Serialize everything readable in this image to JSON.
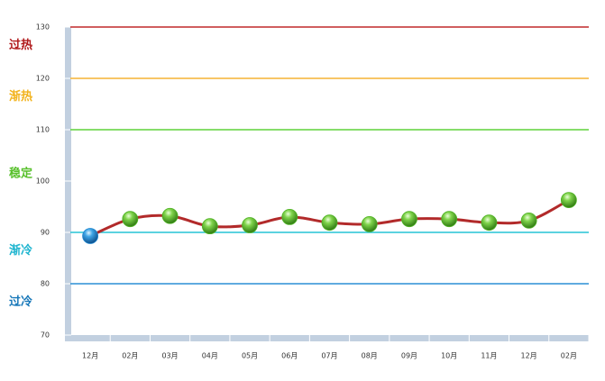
{
  "chart_data": {
    "type": "line",
    "categories": [
      "12月",
      "02月",
      "03月",
      "04月",
      "05月",
      "06月",
      "07月",
      "08月",
      "09月",
      "10月",
      "11月",
      "12月",
      "02月"
    ],
    "series": [
      {
        "color": "#b22a2a",
        "values": [
          89.3,
          92.6,
          93.2,
          91.2,
          91.4,
          93.0,
          91.9,
          91.6,
          92.6,
          92.6,
          91.9,
          92.3,
          96.3
        ]
      }
    ],
    "point_color": "#4fb324",
    "first_point_color": "#1f88d0",
    "ylim": [
      70,
      130
    ],
    "yticks": [
      70,
      80,
      90,
      100,
      110,
      120,
      130
    ],
    "reference_lines": [
      {
        "value": 130,
        "color": "#c0282a"
      },
      {
        "value": 120,
        "color": "#f5b435"
      },
      {
        "value": 110,
        "color": "#5fd23a"
      },
      {
        "value": 90,
        "color": "#26c3d6"
      },
      {
        "value": 80,
        "color": "#2a8fd6"
      }
    ],
    "zones": [
      {
        "label": "过热",
        "color": "#b0181a",
        "range": [
          120,
          130
        ]
      },
      {
        "label": "渐热",
        "color": "#f2b31e",
        "range": [
          110,
          120
        ]
      },
      {
        "label": "稳定",
        "color": "#58c02c",
        "range": [
          90,
          110
        ]
      },
      {
        "label": "渐冷",
        "color": "#1cb4cf",
        "range": [
          80,
          90
        ]
      },
      {
        "label": "过冷",
        "color": "#1576b8",
        "range": [
          70,
          80
        ]
      }
    ]
  }
}
